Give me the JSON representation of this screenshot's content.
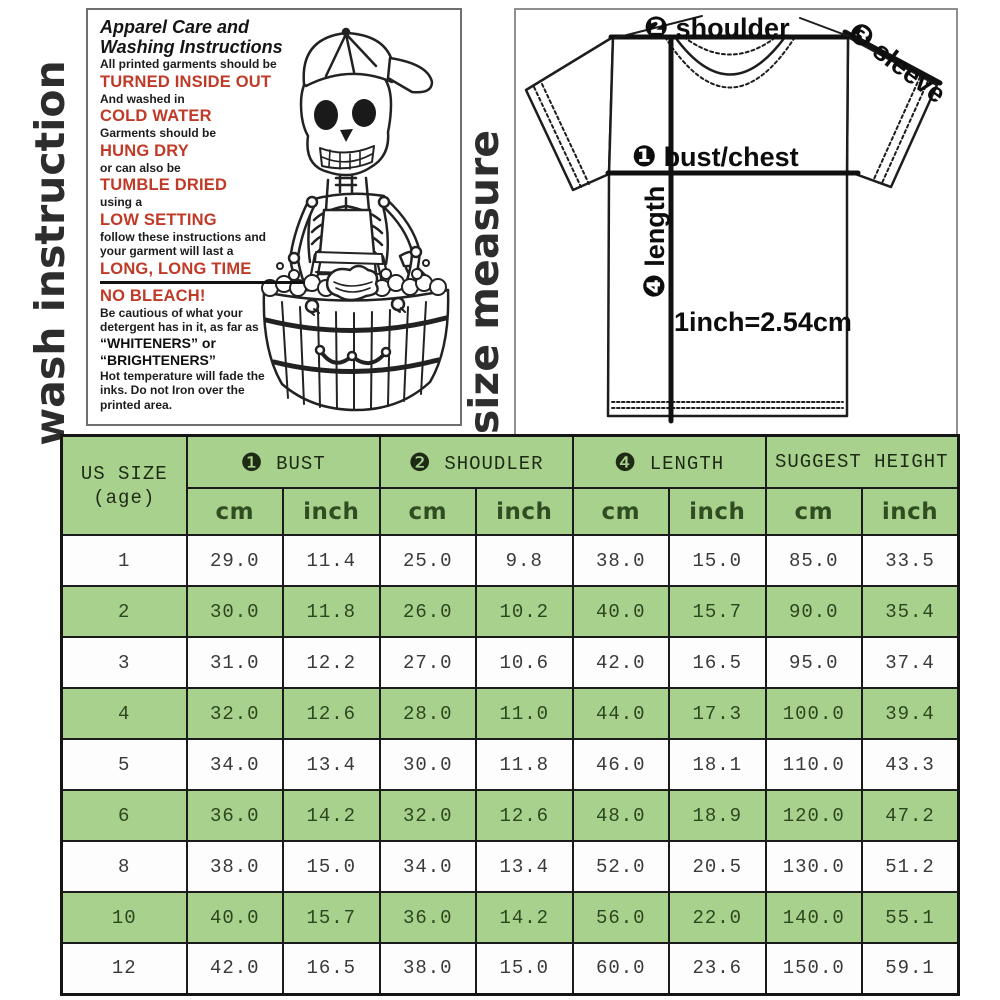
{
  "side_labels": {
    "wash": "wash instruction",
    "size": "size measure"
  },
  "wash_box": {
    "title": [
      "Apparel Care and",
      "Washing Instructions"
    ],
    "red_color": "#c03a28",
    "lines": [
      {
        "text": "All printed garments should be",
        "style": "sm"
      },
      {
        "text": "TURNED INSIDE OUT",
        "style": "red"
      },
      {
        "text": "And washed in",
        "style": "sm"
      },
      {
        "text": "COLD WATER",
        "style": "red"
      },
      {
        "text": "Garments should be",
        "style": "sm"
      },
      {
        "text": "HUNG DRY",
        "style": "red"
      },
      {
        "text": "or can also be",
        "style": "sm"
      },
      {
        "text": "TUMBLE DRIED",
        "style": "red"
      },
      {
        "text": "using a",
        "style": "sm"
      },
      {
        "text": "LOW SETTING",
        "style": "red"
      },
      {
        "text": "follow these instructions and",
        "style": "sm"
      },
      {
        "text": "your garment will last a",
        "style": "sm"
      },
      {
        "text": "LONG, LONG TIME",
        "style": "red_u"
      },
      {
        "text": "NO BLEACH!",
        "style": "red"
      },
      {
        "text": "Be cautious of what your",
        "style": "sm"
      },
      {
        "text": "detergent has in it, as far as",
        "style": "sm"
      },
      {
        "text": "“WHITENERS” or",
        "style": "bq"
      },
      {
        "text": "“BRIGHTENERS”",
        "style": "bq"
      },
      {
        "text": "Hot temperature will fade the",
        "style": "sm"
      },
      {
        "text": "inks. Do not Iron over the",
        "style": "sm"
      },
      {
        "text": "printed area.",
        "style": "sm"
      }
    ],
    "illustration": "skeleton-in-backwards-cap-washing-clothes-in-wooden-tub"
  },
  "size_box": {
    "shoulder_label": {
      "num": "❷",
      "text": "shoulder"
    },
    "sleeve_label": {
      "num": "❸",
      "text": "sleeve"
    },
    "bust_label": {
      "num": "❶",
      "text": "bust/chest"
    },
    "length_label": {
      "num": "❹",
      "text": "length"
    },
    "scale_note": "1inch=2.54cm"
  },
  "table": {
    "size_header": {
      "line1": "US SIZE",
      "line2": "(age)"
    },
    "groups": [
      {
        "num": "❶",
        "label": "BUST"
      },
      {
        "num": "❷",
        "label": "SHOUDLER"
      },
      {
        "num": "❹",
        "label": "LENGTH"
      },
      {
        "num": "",
        "label": "SUGGEST HEIGHT"
      }
    ],
    "units": [
      "cm",
      "inch",
      "cm",
      "inch",
      "cm",
      "inch",
      "cm",
      "inch"
    ],
    "rows": [
      [
        "1",
        "29.0",
        "11.4",
        "25.0",
        "9.8",
        "38.0",
        "15.0",
        "85.0",
        "33.5"
      ],
      [
        "2",
        "30.0",
        "11.8",
        "26.0",
        "10.2",
        "40.0",
        "15.7",
        "90.0",
        "35.4"
      ],
      [
        "3",
        "31.0",
        "12.2",
        "27.0",
        "10.6",
        "42.0",
        "16.5",
        "95.0",
        "37.4"
      ],
      [
        "4",
        "32.0",
        "12.6",
        "28.0",
        "11.0",
        "44.0",
        "17.3",
        "100.0",
        "39.4"
      ],
      [
        "5",
        "34.0",
        "13.4",
        "30.0",
        "11.8",
        "46.0",
        "18.1",
        "110.0",
        "43.3"
      ],
      [
        "6",
        "36.0",
        "14.2",
        "32.0",
        "12.6",
        "48.0",
        "18.9",
        "120.0",
        "47.2"
      ],
      [
        "8",
        "38.0",
        "15.0",
        "34.0",
        "13.4",
        "52.0",
        "20.5",
        "130.0",
        "51.2"
      ],
      [
        "10",
        "40.0",
        "15.7",
        "36.0",
        "14.2",
        "56.0",
        "22.0",
        "140.0",
        "55.1"
      ],
      [
        "12",
        "42.0",
        "16.5",
        "38.0",
        "15.0",
        "60.0",
        "23.6",
        "150.0",
        "59.1"
      ]
    ],
    "colors": {
      "header_green": "#a9d18e",
      "row_green": "#a9d18e",
      "row_white": "#fdfdfd",
      "border": "#1b1b1b",
      "text_on_white": "#3a3a3a",
      "text_on_green": "#2c471d"
    }
  }
}
